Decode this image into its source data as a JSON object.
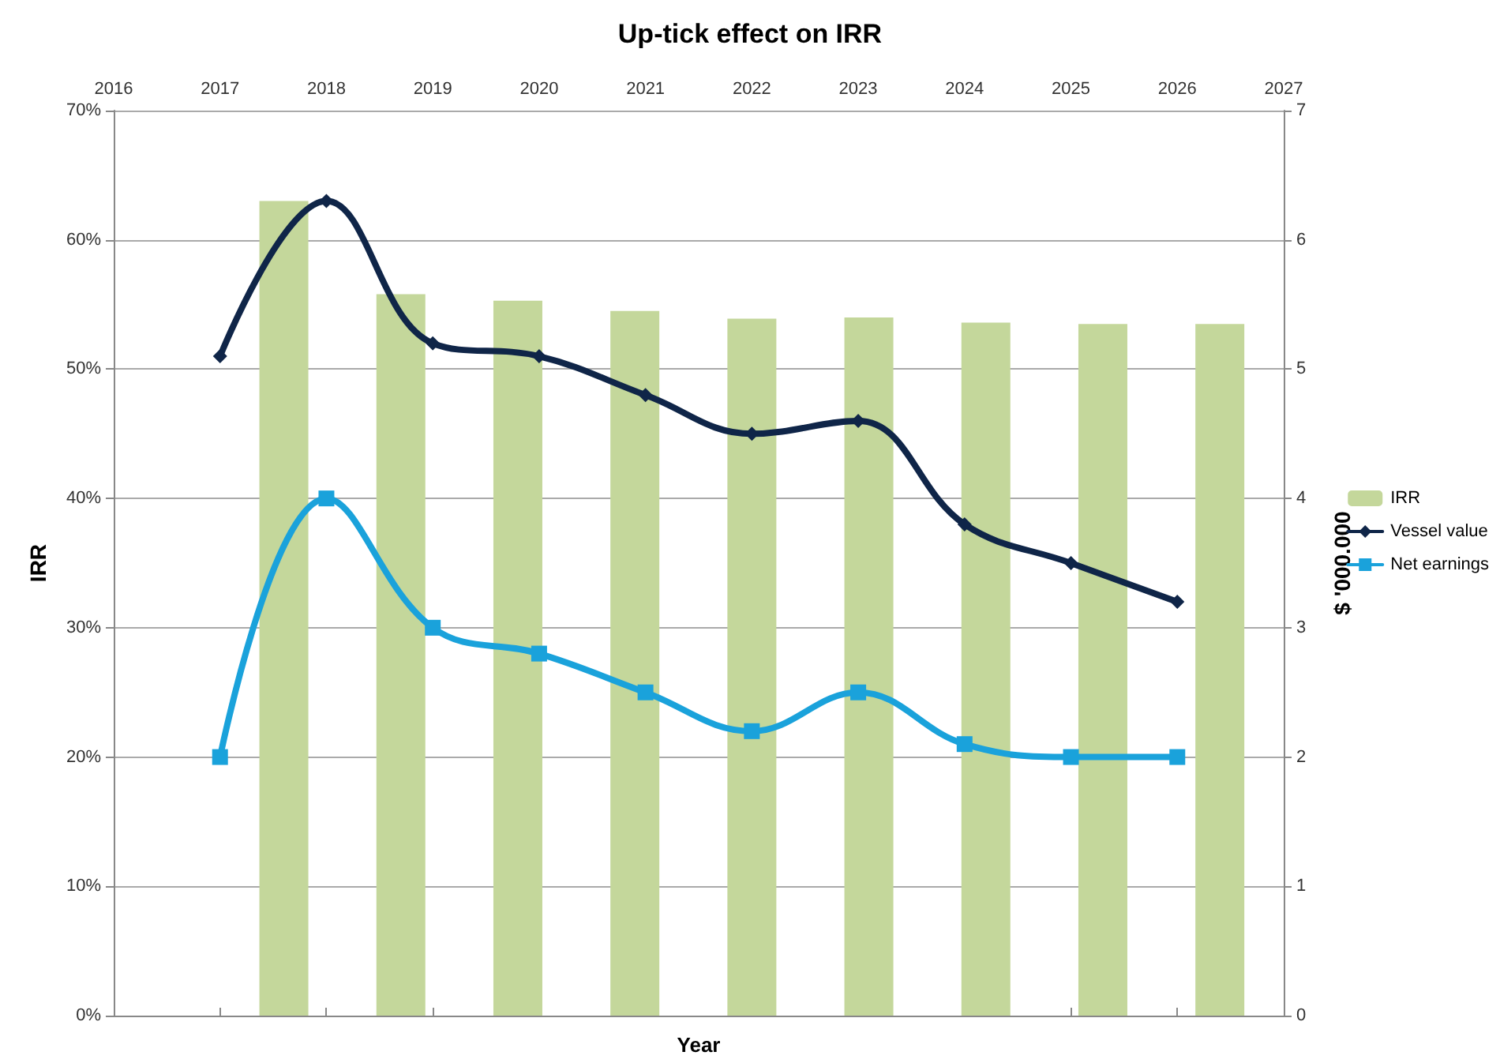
{
  "chart_data": {
    "type": "bar",
    "title": "Up-tick effect on IRR",
    "xlabel": "Year",
    "ylabel": "IRR",
    "y2label": "$ '000.000",
    "x": [
      2017,
      2018,
      2019,
      2020,
      2021,
      2022,
      2023,
      2024,
      2025,
      2026
    ],
    "series": [
      {
        "name": "IRR",
        "color": "#c4d79b",
        "x": [
          2017.6,
          2018.7,
          2019.8,
          2020.9,
          2022.0,
          2023.1,
          2024.2,
          2025.3,
          2026.4
        ],
        "values": [
          63,
          55.8,
          55.3,
          54.5,
          53.9,
          54,
          53.6,
          53.5,
          53.5
        ]
      },
      {
        "name": "Vessel value",
        "type": "line",
        "axis": "y2",
        "marker": "diamond",
        "color": "#0f2548",
        "values": [
          5.1,
          6.3,
          5.2,
          5.1,
          4.8,
          4.5,
          4.6,
          3.8,
          3.5,
          3.2
        ]
      },
      {
        "name": "Net earnings",
        "type": "line",
        "axis": "y2",
        "marker": "square",
        "color": "#1aa2db",
        "values": [
          2.0,
          4.0,
          3.0,
          2.8,
          2.5,
          2.2,
          2.5,
          2.1,
          2.0,
          2.0
        ]
      }
    ],
    "xlim": [
      2016,
      2027
    ],
    "xticks": [
      2016,
      2017,
      2018,
      2019,
      2020,
      2021,
      2022,
      2023,
      2024,
      2025,
      2026,
      2027
    ],
    "ylim": [
      0,
      70
    ],
    "yticks": [
      {
        "value": 0,
        "label": "0%"
      },
      {
        "value": 10,
        "label": "10%"
      },
      {
        "value": 20,
        "label": "20%"
      },
      {
        "value": 30,
        "label": "30%"
      },
      {
        "value": 40,
        "label": "40%"
      },
      {
        "value": 50,
        "label": "50%"
      },
      {
        "value": 60,
        "label": "60%"
      },
      {
        "value": 70,
        "label": "70%"
      }
    ],
    "y2lim": [
      0,
      7
    ],
    "y2ticks": [
      0,
      1,
      2,
      3,
      4,
      5,
      6,
      7
    ],
    "grid": "y",
    "legend": "right"
  }
}
